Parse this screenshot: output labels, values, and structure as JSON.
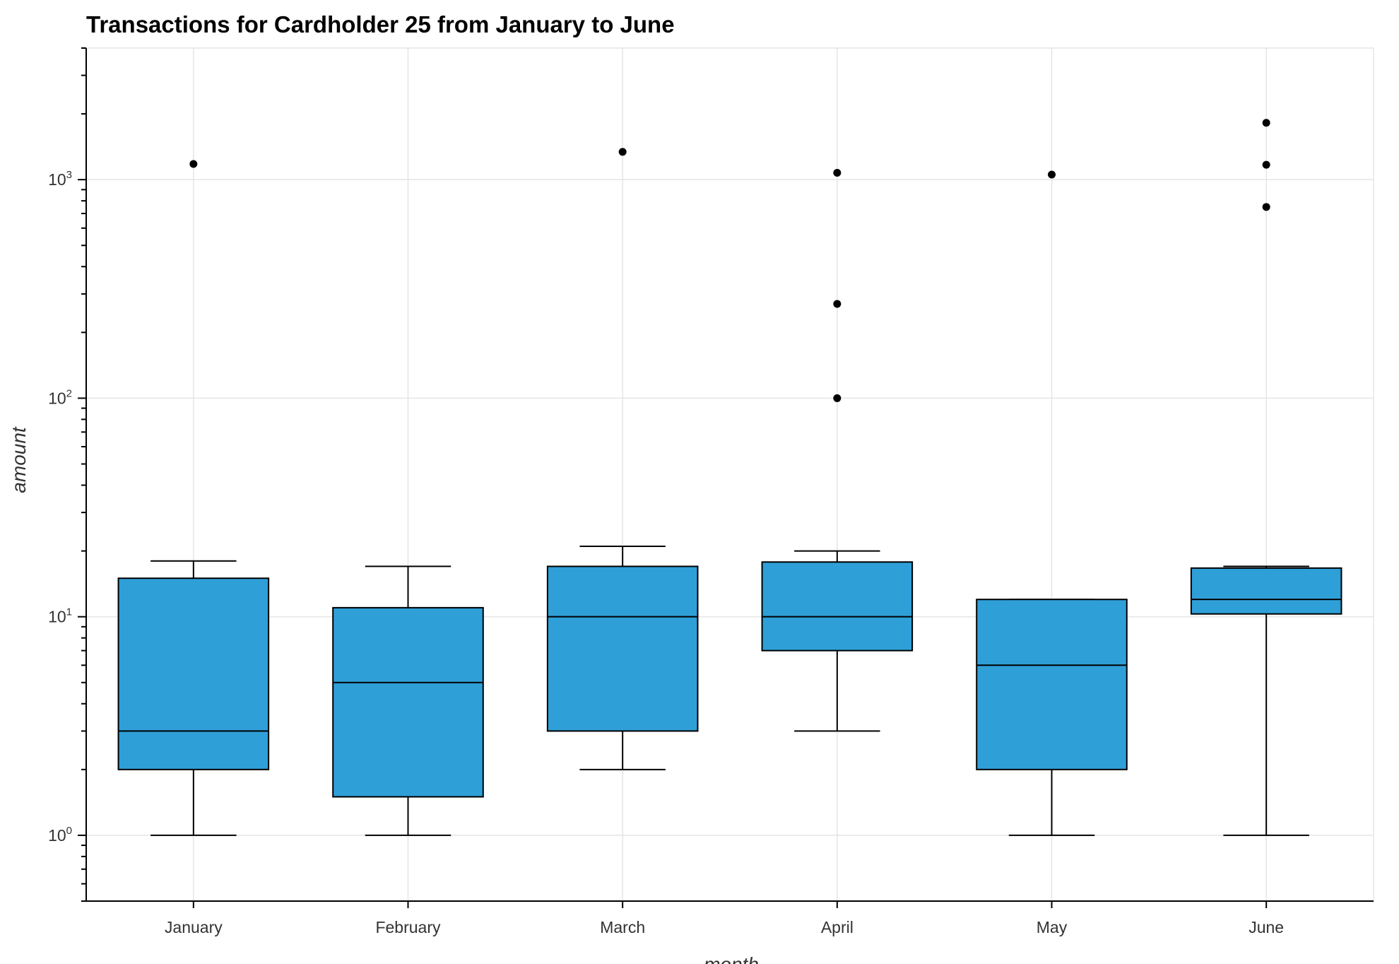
{
  "chart_data": {
    "type": "box",
    "title": "Transactions for Cardholder 25 from January to June",
    "xlabel": "month",
    "ylabel": "amount",
    "y_scale": "log",
    "ylim": [
      0.5,
      4000
    ],
    "grid": true,
    "box_color": "#2f9fd8",
    "y_ticks": [
      {
        "base": "10",
        "exp": "0",
        "value": 1
      },
      {
        "base": "10",
        "exp": "1",
        "value": 10
      },
      {
        "base": "10",
        "exp": "2",
        "value": 100
      },
      {
        "base": "10",
        "exp": "3",
        "value": 1000
      }
    ],
    "categories": [
      "January",
      "February",
      "March",
      "April",
      "May",
      "June"
    ],
    "boxes": [
      {
        "category": "January",
        "whisker_low": 1,
        "q1": 2,
        "median": 3,
        "q3": 15,
        "whisker_high": 18,
        "outliers": [
          1180
        ]
      },
      {
        "category": "February",
        "whisker_low": 1,
        "q1": 1.5,
        "median": 5,
        "q3": 11,
        "whisker_high": 17,
        "outliers": []
      },
      {
        "category": "March",
        "whisker_low": 2,
        "q1": 3,
        "median": 10,
        "q3": 17,
        "whisker_high": 21,
        "outliers": [
          1340
        ]
      },
      {
        "category": "April",
        "whisker_low": 3,
        "q1": 7,
        "median": 10,
        "q3": 17.8,
        "whisker_high": 20,
        "outliers": [
          100,
          270,
          1075
        ]
      },
      {
        "category": "May",
        "whisker_low": 1,
        "q1": 2,
        "median": 6,
        "q3": 12,
        "whisker_high": 12,
        "outliers": [
          1055
        ]
      },
      {
        "category": "June",
        "whisker_low": 1,
        "q1": 10.3,
        "median": 12,
        "q3": 16.7,
        "whisker_high": 17,
        "outliers": [
          750,
          1170,
          1820
        ]
      }
    ]
  }
}
